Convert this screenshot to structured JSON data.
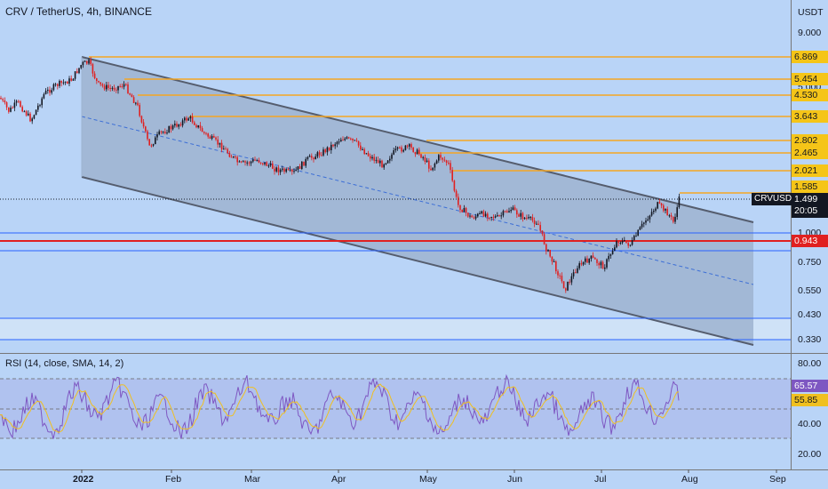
{
  "header": {
    "title": "CRV / TetherUS, 4h, BINANCE"
  },
  "rsi": {
    "title": "RSI (14, close, SMA, 14, 2)",
    "value": "65.57",
    "sma_value": "55.85"
  },
  "price_axis": {
    "currency": "USDT",
    "ticks": [
      "9.000",
      "5.000",
      "1.000",
      "0.750",
      "0.550",
      "0.430",
      "0.330"
    ]
  },
  "rsi_axis": {
    "ticks": [
      "80.00",
      "40.00",
      "20.00"
    ]
  },
  "time_axis": {
    "labels": [
      "2022",
      "Feb",
      "Mar",
      "Apr",
      "May",
      "Jun",
      "Jul",
      "Aug",
      "Sep"
    ]
  },
  "levels": [
    "6.869",
    "5.454",
    "4.530",
    "3.643",
    "2.802",
    "2.465",
    "2.021",
    "1.585"
  ],
  "red_level": "0.943",
  "symbol": "CRVUSDT",
  "current": {
    "price": "1.499",
    "countdown": "20:05"
  },
  "colors": {
    "background": "#b9d4f7",
    "up": "#131722",
    "down": "#e02020",
    "level": "#f5a623",
    "channel": "#555d6e",
    "rsi_line": "#7e57c2",
    "rsi_sma": "#f0c020"
  }
}
